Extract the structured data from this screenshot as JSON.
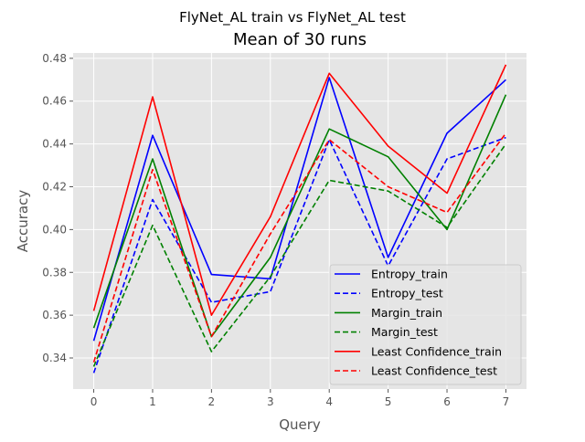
{
  "chart_data": {
    "type": "line",
    "suptitle": "FlyNet_AL train vs FlyNet_AL test",
    "title": "Mean of 30 runs",
    "xlabel": "Query",
    "ylabel": "Accuracy",
    "x": [
      0,
      1,
      2,
      3,
      4,
      5,
      6,
      7
    ],
    "xlim": [
      -0.35,
      7.35
    ],
    "ylim": [
      0.3255,
      0.4825
    ],
    "xticks": [
      0,
      1,
      2,
      3,
      4,
      5,
      6,
      7
    ],
    "yticks": [
      0.34,
      0.36,
      0.38,
      0.4,
      0.42,
      0.44,
      0.46,
      0.48
    ],
    "ytick_labels": [
      "0.34",
      "0.36",
      "0.38",
      "0.40",
      "0.42",
      "0.44",
      "0.46",
      "0.48"
    ],
    "grid": true,
    "legend_position": "lower-right",
    "series": [
      {
        "name": "Entropy_train",
        "color": "#0000ff",
        "dash": "solid",
        "values": [
          0.348,
          0.444,
          0.379,
          0.377,
          0.471,
          0.387,
          0.445,
          0.47
        ]
      },
      {
        "name": "Entropy_test",
        "color": "#0000ff",
        "dash": "dashed",
        "values": [
          0.333,
          0.414,
          0.366,
          0.371,
          0.442,
          0.383,
          0.433,
          0.443
        ]
      },
      {
        "name": "Margin_train",
        "color": "#008000",
        "dash": "solid",
        "values": [
          0.354,
          0.433,
          0.35,
          0.387,
          0.447,
          0.434,
          0.4,
          0.463
        ]
      },
      {
        "name": "Margin_test",
        "color": "#008000",
        "dash": "dashed",
        "values": [
          0.336,
          0.402,
          0.343,
          0.378,
          0.423,
          0.418,
          0.401,
          0.44
        ]
      },
      {
        "name": "Least Confidence_train",
        "color": "#ff0000",
        "dash": "solid",
        "values": [
          0.362,
          0.462,
          0.36,
          0.406,
          0.473,
          0.439,
          0.417,
          0.477
        ]
      },
      {
        "name": "Least Confidence_test",
        "color": "#ff0000",
        "dash": "dashed",
        "values": [
          0.338,
          0.428,
          0.35,
          0.398,
          0.442,
          0.42,
          0.408,
          0.445
        ]
      }
    ]
  }
}
